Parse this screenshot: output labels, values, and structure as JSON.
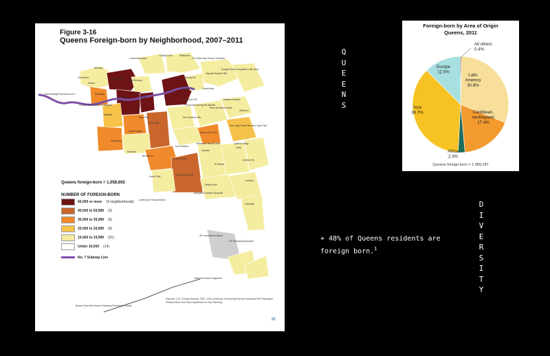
{
  "map_figure": {
    "figure_label": "Figure 3-16",
    "title": "Queens Foreign-born by Neighborhood, 2007–2011",
    "total_label": "Queens foreign-born = 1,058,602",
    "legend_title": "NUMBER OF FOREIGN-BORN",
    "legend": [
      {
        "range": "60,000 or more",
        "count": "(4 neighborhoods)",
        "color": "#6e1416"
      },
      {
        "range": "40,000 to 59,999",
        "count": "(2)",
        "color": "#c9662b"
      },
      {
        "range": "30,000 to 39,999",
        "count": "(5)",
        "color": "#f08a2b"
      },
      {
        "range": "20,000 to 29,999",
        "count": "(6)",
        "color": "#f5c24a"
      },
      {
        "range": "10,000 to 19,999",
        "count": "(21)",
        "color": "#f4eda0"
      },
      {
        "range": "Under 10,000",
        "count": "(14)",
        "color": "#ffffff"
      }
    ],
    "subway_label": "No. 7 Subway Line",
    "subway_color": "#7b4fa6",
    "sources": "Sources: U.S. Census Bureau, 2007–2011 American Community Survey Summary File Population Division-New York City Department of City Planning",
    "page_number": "53",
    "neighborhood_labels": [
      "Steinway",
      "LaGuardia Airport",
      "College Point",
      "Whitestone",
      "Fort Totten Bay Terrace Clearview",
      "Old Astoria",
      "Astoria",
      "Jackson Hts",
      "East Elmhurst",
      "Murray Hill",
      "Bayside Bayside Hills",
      "Douglas Manor Douglaston Little Neck",
      "Queensbridge Ravenswood LIC",
      "Flushing",
      "Auburndale",
      "Woodside",
      "Elmhurst",
      "Corona",
      "Queensboro Hill",
      "Oakland Gardens",
      "Hunters Pt Sunnyside W Maspeth",
      "Pomonok Flushing Hts Hillcrest",
      "Fresh Meadows Utopia",
      "Bellerose",
      "Maspeth",
      "Rego Park",
      "Forest Hills",
      "Kew Gardens Hills",
      "Jamaica Est Hollis",
      "Glen Oaks Floral Park New Hyde Park",
      "Middle Village",
      "Queens Village",
      "Ridgewood",
      "Glendale",
      "Briarwood Jamaica Hills",
      "Kew Gardens",
      "Jamaica",
      "Hollis",
      "Woodhaven",
      "Richmond Hill",
      "St. Albans",
      "Cambria Hts",
      "Ozone Park",
      "South Ozone Park",
      "Baisley Park",
      "Laurelton",
      "Springfield Gardens Brookville",
      "Rosedale",
      "Lindenwood Howard Beach",
      "JFK International Airport",
      "Far Rockaway Bayswater",
      "Hammels Arverne Edgemere",
      "Breezy Point Belle Harbor Rockaway Park Broad Channel"
    ]
  },
  "pie_figure": {
    "title_line1": "Foreign-born by Area of Origin",
    "title_line2": "Queens, 2011",
    "footer": "Queens foreign-born = 1,089,187",
    "labels": {
      "all_others": [
        "All others",
        "0.4%"
      ],
      "latin_america": [
        "Latin",
        "America",
        "30.8%"
      ],
      "caribbean": [
        "Caribbean,",
        "nonhispanic",
        "17.4%"
      ],
      "africa": [
        "Africa",
        "2.3%"
      ],
      "asia": [
        "Asia",
        "36.7%"
      ],
      "europe": [
        "Europe",
        "12.5%"
      ]
    }
  },
  "chart_data": {
    "type": "pie",
    "title": "Foreign-born by Area of Origin Queens, 2011",
    "categories": [
      "All others",
      "Latin America",
      "Caribbean, nonhispanic",
      "Africa",
      "Asia",
      "Europe"
    ],
    "values": [
      0.4,
      30.8,
      17.4,
      2.3,
      36.7,
      12.5
    ],
    "colors": [
      "#b04a2a",
      "#f7df9a",
      "#f39a2e",
      "#1f6e5c",
      "#f7c324",
      "#a8dfe0"
    ]
  },
  "side_text": {
    "queens": "QUEENS",
    "diversity": "DIVERSITY",
    "note": "+ 48% of Queens residents are foreign born.",
    "note_footnote": "1"
  }
}
